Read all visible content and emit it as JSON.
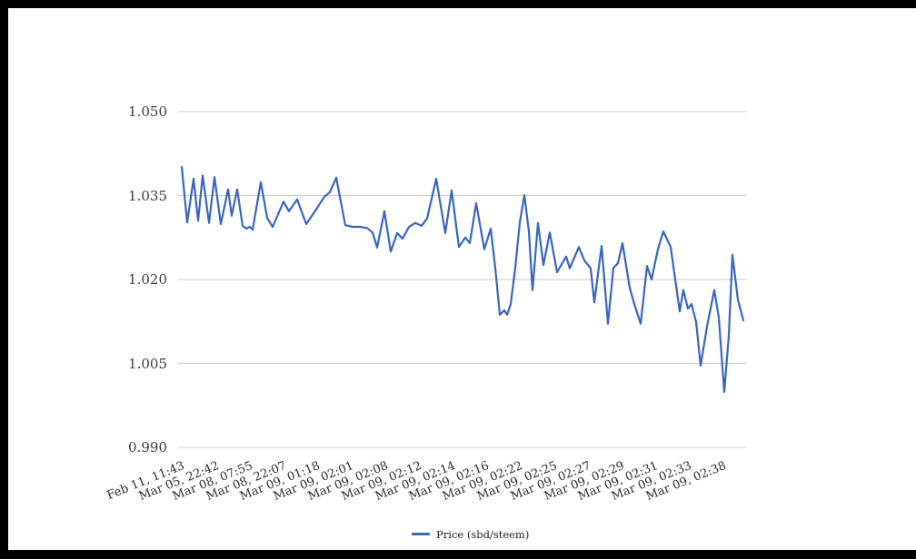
{
  "chart_data": {
    "type": "line",
    "title": "",
    "legend": "Price (sbd/steem)",
    "legend_position": "bottom",
    "grid_on": true,
    "grid_color": "#cccccc",
    "background_color": "#ffffff",
    "frame_color": "#000000",
    "y_axis": {
      "min": 0.99,
      "max": 1.05,
      "tick_labels": [
        "1.050",
        "1.035",
        "1.020",
        "1.005",
        "0.990"
      ],
      "tick_values": [
        1.05,
        1.035,
        1.02,
        1.005,
        0.99
      ]
    },
    "x_axis": {
      "tick_labels": [
        "Feb 11, 11:43",
        "Mar 05, 22:42",
        "Mar 08, 07:55",
        "Mar 08, 22:07",
        "Mar 09, 01:18",
        "Mar 09, 02:01",
        "Mar 09, 02:08",
        "Mar 09, 02:12",
        "Mar 09, 02:14",
        "Mar 09, 02:16",
        "Mar 09, 02:22",
        "Mar 09, 02:25",
        "Mar 09, 02:27",
        "Mar 09, 02:29",
        "Mar 09, 02:31",
        "Mar 09, 02:33",
        "Mar 09, 02:38"
      ]
    },
    "series": [
      {
        "name": "Price (sbd/steem)",
        "color": "#3b65bd",
        "points": [
          [
            0.0,
            1.0401
          ],
          [
            0.0097,
            1.0302
          ],
          [
            0.021,
            1.038
          ],
          [
            0.0291,
            1.0305
          ],
          [
            0.0372,
            1.0386
          ],
          [
            0.0485,
            1.0301
          ],
          [
            0.0583,
            1.0383
          ],
          [
            0.0696,
            1.0299
          ],
          [
            0.0825,
            1.0361
          ],
          [
            0.089,
            1.0314
          ],
          [
            0.0987,
            1.0361
          ],
          [
            0.1084,
            1.0296
          ],
          [
            0.1149,
            1.0291
          ],
          [
            0.1214,
            1.0294
          ],
          [
            0.1262,
            1.0289
          ],
          [
            0.1408,
            1.0374
          ],
          [
            0.1521,
            1.031
          ],
          [
            0.1618,
            1.0294
          ],
          [
            0.1812,
            1.0339
          ],
          [
            0.1909,
            1.0322
          ],
          [
            0.2055,
            1.0343
          ],
          [
            0.2217,
            1.0299
          ],
          [
            0.2379,
            1.0323
          ],
          [
            0.254,
            1.0348
          ],
          [
            0.2638,
            1.0356
          ],
          [
            0.2751,
            1.0382
          ],
          [
            0.2913,
            1.0297
          ],
          [
            0.3042,
            1.0294
          ],
          [
            0.3172,
            1.0294
          ],
          [
            0.3301,
            1.0292
          ],
          [
            0.3398,
            1.0284
          ],
          [
            0.3479,
            1.0257
          ],
          [
            0.3608,
            1.0322
          ],
          [
            0.3722,
            1.025
          ],
          [
            0.3835,
            1.0283
          ],
          [
            0.3932,
            1.0273
          ],
          [
            0.4045,
            1.0294
          ],
          [
            0.4159,
            1.0301
          ],
          [
            0.4272,
            1.0296
          ],
          [
            0.4369,
            1.0309
          ],
          [
            0.4531,
            1.038
          ],
          [
            0.4693,
            1.0283
          ],
          [
            0.4806,
            1.0359
          ],
          [
            0.4935,
            1.0258
          ],
          [
            0.5049,
            1.0275
          ],
          [
            0.5129,
            1.0265
          ],
          [
            0.5243,
            1.0336
          ],
          [
            0.5388,
            1.0254
          ],
          [
            0.5502,
            1.0291
          ],
          [
            0.5583,
            1.0221
          ],
          [
            0.5663,
            1.0137
          ],
          [
            0.5744,
            1.0145
          ],
          [
            0.5793,
            1.0137
          ],
          [
            0.5858,
            1.0156
          ],
          [
            0.5939,
            1.0221
          ],
          [
            0.6019,
            1.0302
          ],
          [
            0.61,
            1.0351
          ],
          [
            0.6181,
            1.0286
          ],
          [
            0.6246,
            1.0181
          ],
          [
            0.6343,
            1.0301
          ],
          [
            0.644,
            1.0226
          ],
          [
            0.6553,
            1.0284
          ],
          [
            0.6683,
            1.0213
          ],
          [
            0.6845,
            1.0241
          ],
          [
            0.6909,
            1.022
          ],
          [
            0.7071,
            1.0258
          ],
          [
            0.7168,
            1.0234
          ],
          [
            0.7282,
            1.022
          ],
          [
            0.7346,
            1.0159
          ],
          [
            0.7476,
            1.026
          ],
          [
            0.7589,
            1.0121
          ],
          [
            0.7686,
            1.0221
          ],
          [
            0.7767,
            1.0229
          ],
          [
            0.7848,
            1.0265
          ],
          [
            0.7977,
            1.0185
          ],
          [
            0.8058,
            1.0156
          ],
          [
            0.8172,
            1.0121
          ],
          [
            0.8285,
            1.0224
          ],
          [
            0.8366,
            1.02
          ],
          [
            0.8479,
            1.0254
          ],
          [
            0.8576,
            1.0286
          ],
          [
            0.8706,
            1.0258
          ],
          [
            0.8868,
            1.0143
          ],
          [
            0.8932,
            1.0181
          ],
          [
            0.9013,
            1.0148
          ],
          [
            0.9078,
            1.0156
          ],
          [
            0.9159,
            1.0124
          ],
          [
            0.924,
            1.0046
          ],
          [
            0.9353,
            1.0116
          ],
          [
            0.9482,
            1.0181
          ],
          [
            0.9563,
            1.0132
          ],
          [
            0.966,
            0.9999
          ],
          [
            0.9741,
            1.01
          ],
          [
            0.9806,
            1.0244
          ],
          [
            0.9903,
            1.0164
          ],
          [
            1.0,
            1.0127
          ]
        ]
      }
    ]
  }
}
